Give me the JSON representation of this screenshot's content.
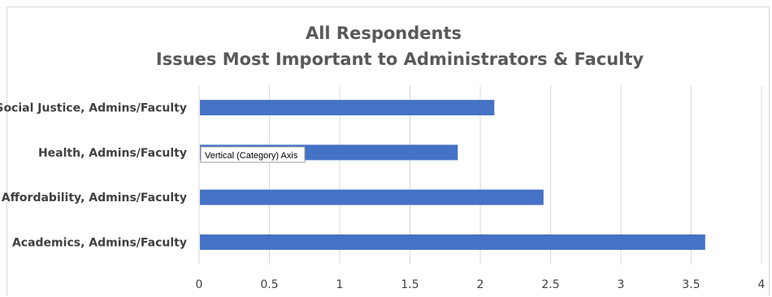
{
  "chart_data": {
    "type": "bar",
    "orientation": "horizontal",
    "title": [
      "All Respondents",
      "Issues Most Important to  Administrators & Faculty"
    ],
    "categories": [
      "Social Justice, Admins/Faculty",
      "Health, Admins/Faculty",
      "Affordability, Admins/Faculty",
      "Academics, Admins/Faculty"
    ],
    "values": [
      2.1,
      1.84,
      2.45,
      3.6
    ],
    "xlim": [
      0,
      4
    ],
    "xticks": [
      "0",
      "0.5",
      "1",
      "1.5",
      "2",
      "2.5",
      "3",
      "3.5",
      "4"
    ],
    "grid": true,
    "bar_color": "#4472c4",
    "gridline_color": "#d9d9d9"
  },
  "tooltip": {
    "text": "Vertical (Category) Axis"
  }
}
